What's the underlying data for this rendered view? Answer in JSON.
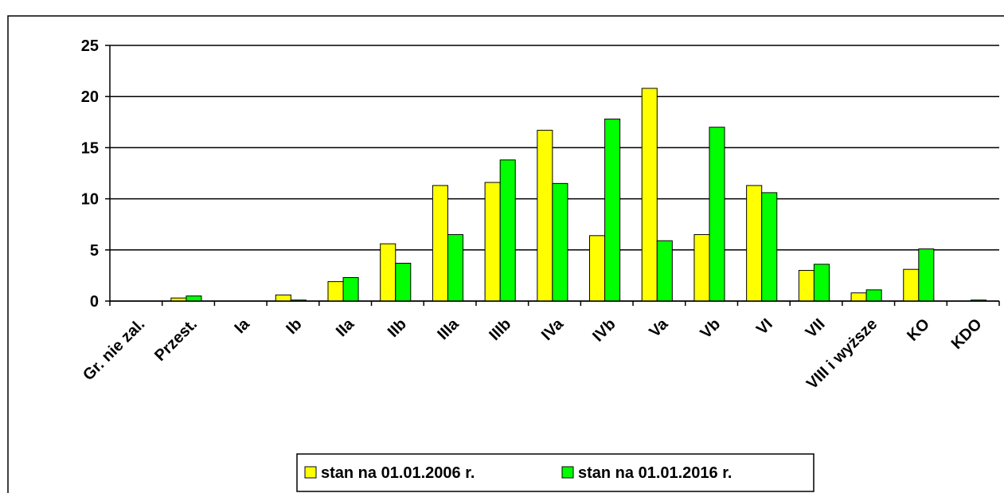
{
  "chart_data": {
    "type": "bar",
    "categories": [
      "Gr. nie zal.",
      "Przest.",
      "Ia",
      "Ib",
      "IIa",
      "IIb",
      "IIIa",
      "IIIb",
      "IVa",
      "IVb",
      "Va",
      "Vb",
      "VI",
      "VII",
      "VIII i wyższe",
      "KO",
      "KDO"
    ],
    "series": [
      {
        "name": "stan na 01.01.2006 r.",
        "color": "#ffff00",
        "values": [
          0,
          0.3,
          0,
          0.6,
          1.9,
          5.6,
          11.3,
          11.6,
          16.7,
          6.4,
          20.8,
          6.5,
          11.3,
          3.0,
          0.8,
          3.1,
          0
        ]
      },
      {
        "name": "stan na 01.01.2016 r.",
        "color": "#00ff00",
        "values": [
          0,
          0.5,
          0,
          0.1,
          2.3,
          3.7,
          6.5,
          13.8,
          11.5,
          17.8,
          5.9,
          17.0,
          10.6,
          3.6,
          1.1,
          5.1,
          0.1
        ]
      }
    ],
    "ylim": [
      0,
      25
    ],
    "yticks": [
      0,
      5,
      10,
      15,
      20,
      25
    ],
    "grid": true,
    "legend": "bottom"
  }
}
